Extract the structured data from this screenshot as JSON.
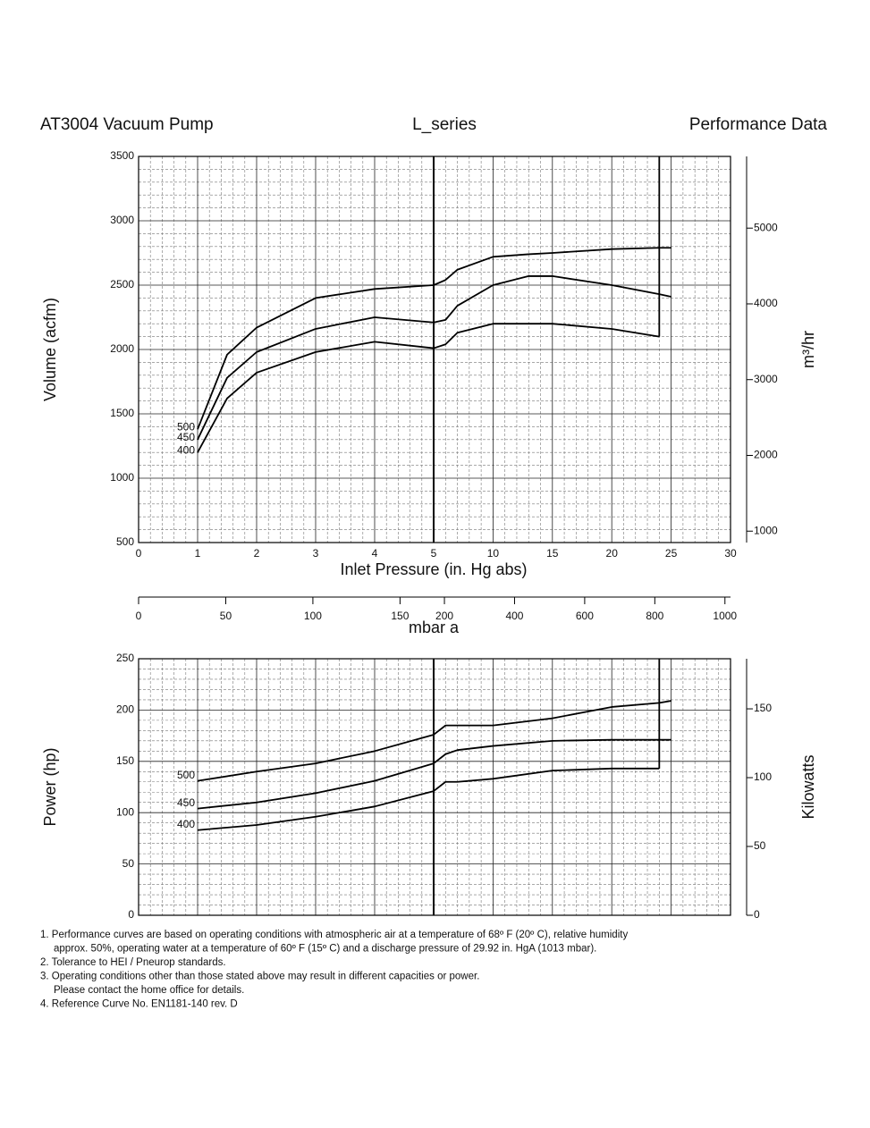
{
  "header": {
    "left": "AT3004 Vacuum Pump",
    "center": "L_series",
    "right": "Performance Data"
  },
  "chart_data": [
    {
      "type": "line",
      "ylabel": "Volume (acfm)",
      "y2label": "m³/hr",
      "xlabel": "Inlet Pressure (in. Hg abs)",
      "xlim": [
        0,
        30
      ],
      "x_break": 5,
      "xticks": [
        0,
        1,
        2,
        3,
        4,
        5,
        10,
        15,
        20,
        25,
        30
      ],
      "ylim": [
        500,
        3500
      ],
      "yticks": [
        500,
        1000,
        1500,
        2000,
        2500,
        3000,
        3500
      ],
      "y2lim": [
        849.5,
        5946.5
      ],
      "y2ticks": [
        1000,
        2000,
        3000,
        4000,
        5000
      ],
      "grid": true,
      "limit_x": 24,
      "x": [
        1,
        1.5,
        2,
        3,
        4,
        5,
        6,
        7,
        10,
        13,
        15,
        20,
        24,
        25
      ],
      "series": [
        {
          "name": "500",
          "color": "#000000",
          "values": [
            1380,
            1960,
            2170,
            2400,
            2470,
            2500,
            2540,
            2620,
            2720,
            2740,
            2750,
            2780,
            2790,
            2790
          ]
        },
        {
          "name": "450",
          "color": "#000000",
          "values": [
            1300,
            1780,
            1980,
            2160,
            2250,
            2210,
            2230,
            2340,
            2500,
            2570,
            2570,
            2500,
            2430,
            2410
          ]
        },
        {
          "name": "400",
          "color": "#000000",
          "values": [
            1200,
            1620,
            1820,
            1980,
            2060,
            2010,
            2040,
            2130,
            2200,
            2200,
            2200,
            2160,
            2100,
            null
          ]
        }
      ]
    },
    {
      "type": "line",
      "ylabel": "Power (hp)",
      "y2label": "Kilowatts",
      "xlim": [
        0,
        30
      ],
      "x_break": 5,
      "xticks": [
        0,
        1,
        2,
        3,
        4,
        5,
        10,
        15,
        20,
        25,
        30
      ],
      "ylim": [
        0,
        250
      ],
      "yticks": [
        0,
        50,
        100,
        150,
        200,
        250
      ],
      "y2lim": [
        0,
        186.4
      ],
      "y2ticks": [
        0,
        50,
        100,
        150
      ],
      "grid": true,
      "limit_x": 24,
      "x": [
        1,
        2,
        3,
        4,
        5,
        6,
        7,
        10,
        15,
        20,
        24,
        25
      ],
      "series": [
        {
          "name": "500",
          "color": "#000000",
          "values": [
            131,
            140,
            148,
            160,
            176,
            185,
            185,
            185,
            192,
            203,
            207,
            209
          ]
        },
        {
          "name": "450",
          "color": "#000000",
          "values": [
            104,
            110,
            119,
            131,
            148,
            157,
            161,
            165,
            170,
            171,
            171,
            171
          ]
        },
        {
          "name": "400",
          "color": "#000000",
          "values": [
            83,
            88,
            96,
            106,
            121,
            130,
            130,
            133,
            141,
            143,
            143,
            null
          ]
        }
      ]
    }
  ],
  "mbar_axis": {
    "label": "mbar a",
    "xlim": [
      0,
      1015.9
    ],
    "x_break": 169.3,
    "ticks": [
      0,
      50,
      100,
      150,
      200,
      400,
      600,
      800,
      1000
    ]
  },
  "notes": [
    "1. Performance curves are based on operating conditions with atmospheric air at  a temperature of 68º F (20º C), relative humidity",
    "approx. 50%, operating water at  a temperature of 60º F (15º C)  and a discharge pressure of 29.92 in. HgA (1013 mbar).",
    "2. Tolerance to HEI / Pneurop standards.",
    "3. Operating conditions other than those stated above may result in different capacities or power.",
    "Please contact the home office for details.",
    "4. Reference Curve No. EN1181-140 rev. D"
  ]
}
